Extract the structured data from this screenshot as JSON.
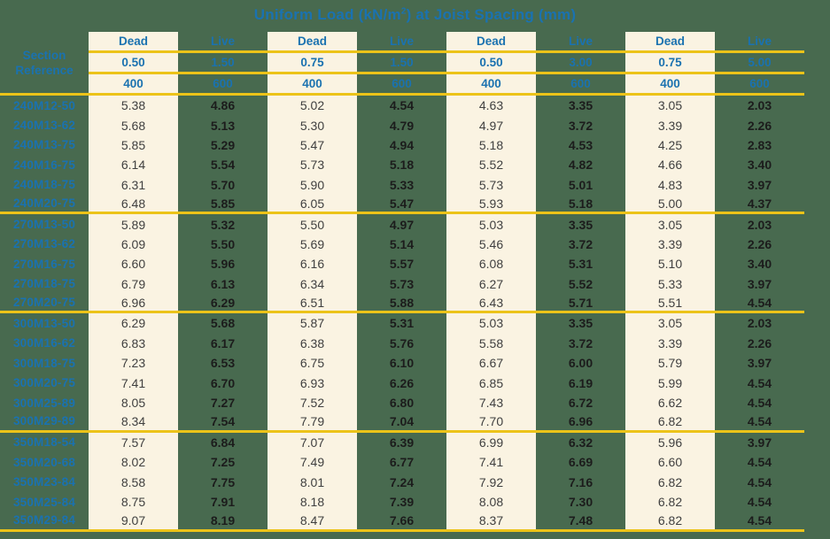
{
  "page": {
    "background_green": "#486a4f",
    "band_cream": "#faf3e2",
    "line_yellow": "#ecc319",
    "accent_blue": "#1a72b0"
  },
  "title": {
    "text_before_sup": "Uniform Load (kN/m",
    "sup": "2",
    "text_after_sup": ") at Joist Spacing (mm)"
  },
  "header": {
    "section_label_line1": "Section",
    "section_label_line2": "Reference",
    "columns": [
      {
        "type": "Dead",
        "load": "0.50",
        "spacing": "400"
      },
      {
        "type": "Live",
        "load": "1.50",
        "spacing": "600"
      },
      {
        "type": "Dead",
        "load": "0.75",
        "spacing": "400"
      },
      {
        "type": "Live",
        "load": "1.50",
        "spacing": "600"
      },
      {
        "type": "Dead",
        "load": "0.50",
        "spacing": "400"
      },
      {
        "type": "Live",
        "load": "3.00",
        "spacing": "600"
      },
      {
        "type": "Dead",
        "load": "0.75",
        "spacing": "400"
      },
      {
        "type": "Live",
        "load": "5.00",
        "spacing": "600"
      }
    ]
  },
  "table": {
    "groups": [
      {
        "rows": [
          {
            "ref": "240M12-50",
            "values": [
              "5.38",
              "4.86",
              "5.02",
              "4.54",
              "4.63",
              "3.35",
              "3.05",
              "2.03"
            ]
          },
          {
            "ref": "240M13-62",
            "values": [
              "5.68",
              "5.13",
              "5.30",
              "4.79",
              "4.97",
              "3.72",
              "3.39",
              "2.26"
            ]
          },
          {
            "ref": "240M13-75",
            "values": [
              "5.85",
              "5.29",
              "5.47",
              "4.94",
              "5.18",
              "4.53",
              "4.25",
              "2.83"
            ]
          },
          {
            "ref": "240M16-75",
            "values": [
              "6.14",
              "5.54",
              "5.73",
              "5.18",
              "5.52",
              "4.82",
              "4.66",
              "3.40"
            ]
          },
          {
            "ref": "240M18-75",
            "values": [
              "6.31",
              "5.70",
              "5.90",
              "5.33",
              "5.73",
              "5.01",
              "4.83",
              "3.97"
            ]
          },
          {
            "ref": "240M20-75",
            "values": [
              "6.48",
              "5.85",
              "6.05",
              "5.47",
              "5.93",
              "5.18",
              "5.00",
              "4.37"
            ]
          }
        ]
      },
      {
        "rows": [
          {
            "ref": "270M13-50",
            "values": [
              "5.89",
              "5.32",
              "5.50",
              "4.97",
              "5.03",
              "3.35",
              "3.05",
              "2.03"
            ]
          },
          {
            "ref": "270M13-62",
            "values": [
              "6.09",
              "5.50",
              "5.69",
              "5.14",
              "5.46",
              "3.72",
              "3.39",
              "2.26"
            ]
          },
          {
            "ref": "270M16-75",
            "values": [
              "6.60",
              "5.96",
              "6.16",
              "5.57",
              "6.08",
              "5.31",
              "5.10",
              "3.40"
            ]
          },
          {
            "ref": "270M18-75",
            "values": [
              "6.79",
              "6.13",
              "6.34",
              "5.73",
              "6.27",
              "5.52",
              "5.33",
              "3.97"
            ]
          },
          {
            "ref": "270M20-75",
            "values": [
              "6.96",
              "6.29",
              "6.51",
              "5.88",
              "6.43",
              "5.71",
              "5.51",
              "4.54"
            ]
          }
        ]
      },
      {
        "rows": [
          {
            "ref": "300M13-50",
            "values": [
              "6.29",
              "5.68",
              "5.87",
              "5.31",
              "5.03",
              "3.35",
              "3.05",
              "2.03"
            ]
          },
          {
            "ref": "300M16-62",
            "values": [
              "6.83",
              "6.17",
              "6.38",
              "5.76",
              "5.58",
              "3.72",
              "3.39",
              "2.26"
            ]
          },
          {
            "ref": "300M18-75",
            "values": [
              "7.23",
              "6.53",
              "6.75",
              "6.10",
              "6.67",
              "6.00",
              "5.79",
              "3.97"
            ]
          },
          {
            "ref": "300M20-75",
            "values": [
              "7.41",
              "6.70",
              "6.93",
              "6.26",
              "6.85",
              "6.19",
              "5.99",
              "4.54"
            ]
          },
          {
            "ref": "300M25-89",
            "values": [
              "8.05",
              "7.27",
              "7.52",
              "6.80",
              "7.43",
              "6.72",
              "6.62",
              "4.54"
            ]
          },
          {
            "ref": "300M29-89",
            "values": [
              "8.34",
              "7.54",
              "7.79",
              "7.04",
              "7.70",
              "6.96",
              "6.82",
              "4.54"
            ]
          }
        ]
      },
      {
        "rows": [
          {
            "ref": "350M18-54",
            "values": [
              "7.57",
              "6.84",
              "7.07",
              "6.39",
              "6.99",
              "6.32",
              "5.96",
              "3.97"
            ]
          },
          {
            "ref": "350M20-68",
            "values": [
              "8.02",
              "7.25",
              "7.49",
              "6.77",
              "7.41",
              "6.69",
              "6.60",
              "4.54"
            ]
          },
          {
            "ref": "350M23-84",
            "values": [
              "8.58",
              "7.75",
              "8.01",
              "7.24",
              "7.92",
              "7.16",
              "6.82",
              "4.54"
            ]
          },
          {
            "ref": "350M25-84",
            "values": [
              "8.75",
              "7.91",
              "8.18",
              "7.39",
              "8.08",
              "7.30",
              "6.82",
              "4.54"
            ]
          },
          {
            "ref": "350M29-84",
            "values": [
              "9.07",
              "8.19",
              "8.47",
              "7.66",
              "8.37",
              "7.48",
              "6.82",
              "4.54"
            ]
          }
        ]
      }
    ]
  }
}
